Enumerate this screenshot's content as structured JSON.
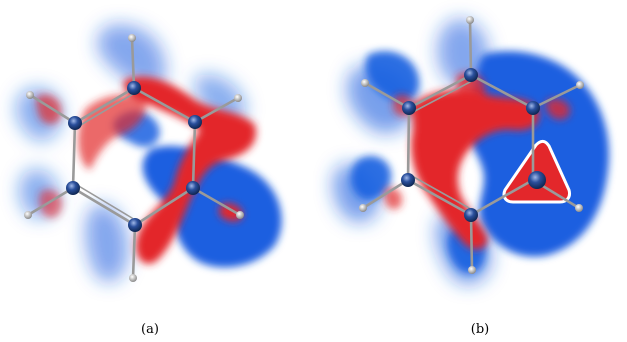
{
  "captions": {
    "a": "(a)",
    "b": "(b)"
  },
  "colors": {
    "positive": "#e3272b",
    "negative": "#1b5fe0",
    "bond": "#8f8f8f",
    "atom_heavy": "#2a4f9c",
    "atom_h": "#a9a9a9",
    "background": "#ffffff"
  }
}
